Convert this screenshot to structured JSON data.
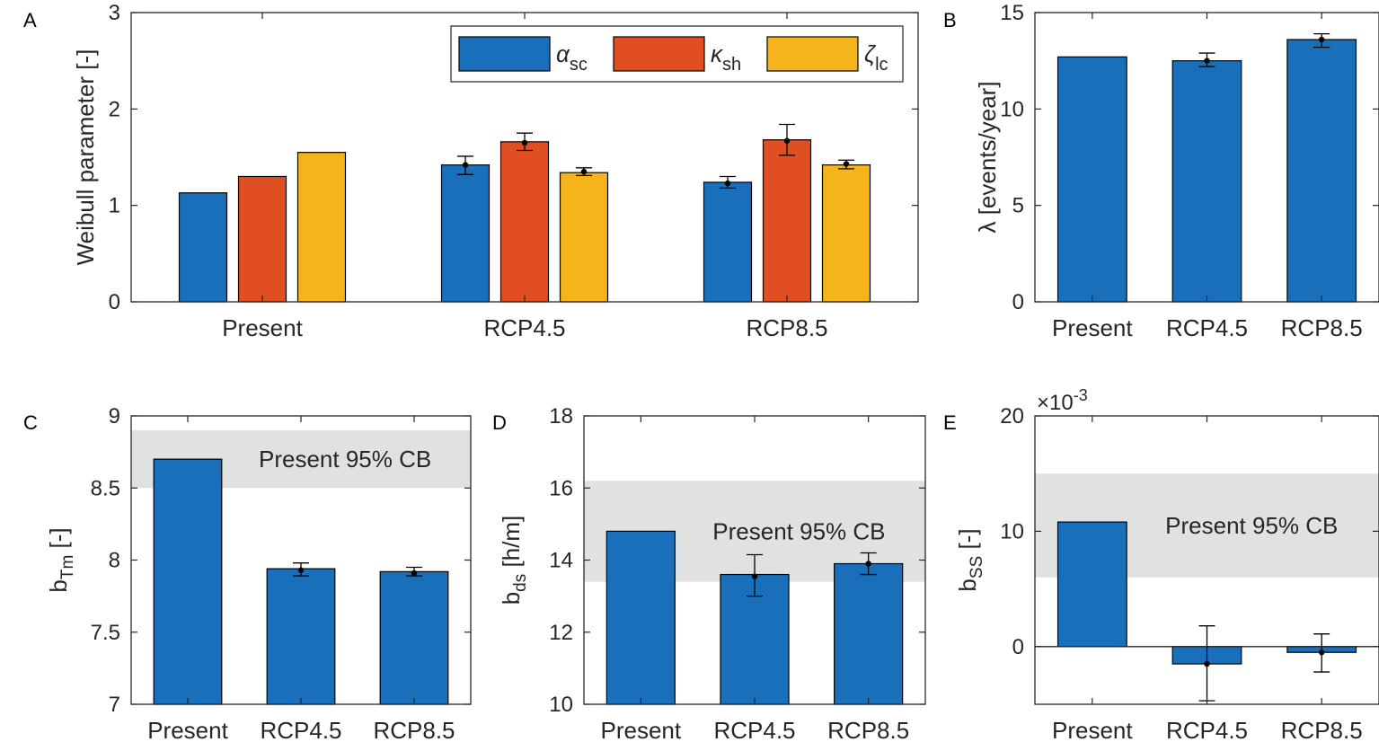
{
  "colors": {
    "blue": "#1A6FBA",
    "orange": "#E04F22",
    "yellow": "#F4B41A",
    "band": "#E0E2E2",
    "axis": "#262626"
  },
  "chart_data": [
    {
      "panel": "A",
      "type": "bar",
      "categories": [
        "Present",
        "RCP4.5",
        "RCP8.5"
      ],
      "ylabel": "Weibull parameter [-]",
      "ylim": [
        0,
        3
      ],
      "yticks": [
        "0",
        "1",
        "2",
        "3"
      ],
      "legend": {
        "position": "top-right",
        "entries": [
          {
            "symbol": "α",
            "sub": "sc"
          },
          {
            "symbol": "κ",
            "sub": "sh"
          },
          {
            "symbol": "ζ",
            "sub": "lc"
          }
        ]
      },
      "series": [
        {
          "name": "α_sc",
          "color": "#1A6FBA",
          "values": [
            1.13,
            1.42,
            1.24
          ],
          "err_low": [
            null,
            1.32,
            1.18
          ],
          "err_high": [
            null,
            1.51,
            1.3
          ],
          "mean": [
            null,
            1.42,
            1.23
          ]
        },
        {
          "name": "κ_sh",
          "color": "#E04F22",
          "values": [
            1.3,
            1.66,
            1.68
          ],
          "err_low": [
            null,
            1.57,
            1.52
          ],
          "err_high": [
            null,
            1.75,
            1.84
          ],
          "mean": [
            null,
            1.65,
            1.67
          ]
        },
        {
          "name": "ζ_lc",
          "color": "#F4B41A",
          "values": [
            1.55,
            1.34,
            1.42
          ],
          "err_low": [
            null,
            1.31,
            1.38
          ],
          "err_high": [
            null,
            1.39,
            1.47
          ],
          "mean": [
            null,
            1.35,
            1.43
          ]
        }
      ]
    },
    {
      "panel": "B",
      "type": "bar",
      "categories": [
        "Present",
        "RCP4.5",
        "RCP8.5"
      ],
      "ylabel": "λ [events/year]",
      "ylim": [
        0,
        15
      ],
      "yticks": [
        "0",
        "5",
        "10",
        "15"
      ],
      "values": [
        12.7,
        12.5,
        13.6
      ],
      "err_low": [
        null,
        12.2,
        13.2
      ],
      "err_high": [
        null,
        12.9,
        13.9
      ],
      "mean": [
        null,
        12.5,
        13.6
      ]
    },
    {
      "panel": "C",
      "type": "bar",
      "categories": [
        "Present",
        "RCP4.5",
        "RCP8.5"
      ],
      "ylabel": "b",
      "ylabel_sub": "Tm",
      "ylabel_tail": " [-]",
      "ylim": [
        7,
        9
      ],
      "yticks": [
        "7",
        "7.5",
        "8",
        "8.5",
        "9"
      ],
      "band": [
        8.5,
        8.9
      ],
      "band_label": "Present 95% CB",
      "values": [
        8.7,
        7.94,
        7.92
      ],
      "err_low": [
        null,
        7.89,
        7.89
      ],
      "err_high": [
        null,
        7.98,
        7.95
      ],
      "mean": [
        null,
        7.93,
        7.91
      ]
    },
    {
      "panel": "D",
      "type": "bar",
      "categories": [
        "Present",
        "RCP4.5",
        "RCP8.5"
      ],
      "ylabel": "b",
      "ylabel_sub": "ds",
      "ylabel_tail": " [h/m]",
      "ylim": [
        10,
        18
      ],
      "yticks": [
        "10",
        "12",
        "14",
        "16",
        "18"
      ],
      "band": [
        13.4,
        16.2
      ],
      "band_label": "Present 95% CB",
      "values": [
        14.8,
        13.6,
        13.9
      ],
      "err_low": [
        null,
        13.0,
        13.6
      ],
      "err_high": [
        null,
        14.15,
        14.2
      ],
      "mean": [
        null,
        13.55,
        13.9
      ]
    },
    {
      "panel": "E",
      "type": "bar",
      "categories": [
        "Present",
        "RCP4.5",
        "RCP8.5"
      ],
      "ylabel": "b",
      "ylabel_sub": "SS",
      "ylabel_tail": " [-]",
      "ylim": [
        -5,
        20
      ],
      "yticks": [
        "0",
        "10",
        "20"
      ],
      "ytick_values": [
        0,
        10,
        20
      ],
      "scale_label": "×10",
      "scale_exp": "-3",
      "band": [
        6,
        15
      ],
      "band_label": "Present 95% CB",
      "values": [
        10.8,
        -1.5,
        -0.5
      ],
      "err_low": [
        null,
        -4.7,
        -2.2
      ],
      "err_high": [
        null,
        1.8,
        1.1
      ],
      "mean": [
        null,
        -1.5,
        -0.5
      ]
    }
  ],
  "panel_letters": [
    "A",
    "B",
    "C",
    "D",
    "E"
  ]
}
